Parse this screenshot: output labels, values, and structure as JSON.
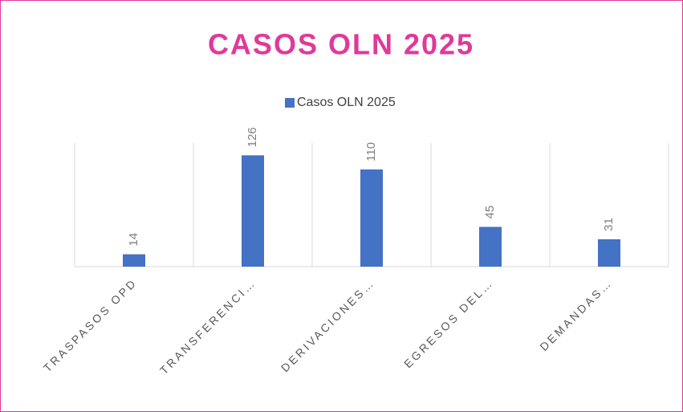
{
  "chart_data": {
    "type": "bar",
    "title": "CASOS OLN 2025",
    "categories": [
      "TRASPASOS OPD",
      "TRANSFERENCI…",
      "DERIVACIONES…",
      "EGRESOS DEL…",
      "DEMANDAS…"
    ],
    "series": [
      {
        "name": "Casos OLN 2025",
        "color": "#4472c4",
        "values": [
          14,
          126,
          110,
          45,
          31
        ]
      }
    ],
    "ylim": [
      0,
      140
    ],
    "grid": true,
    "legend": "top"
  }
}
